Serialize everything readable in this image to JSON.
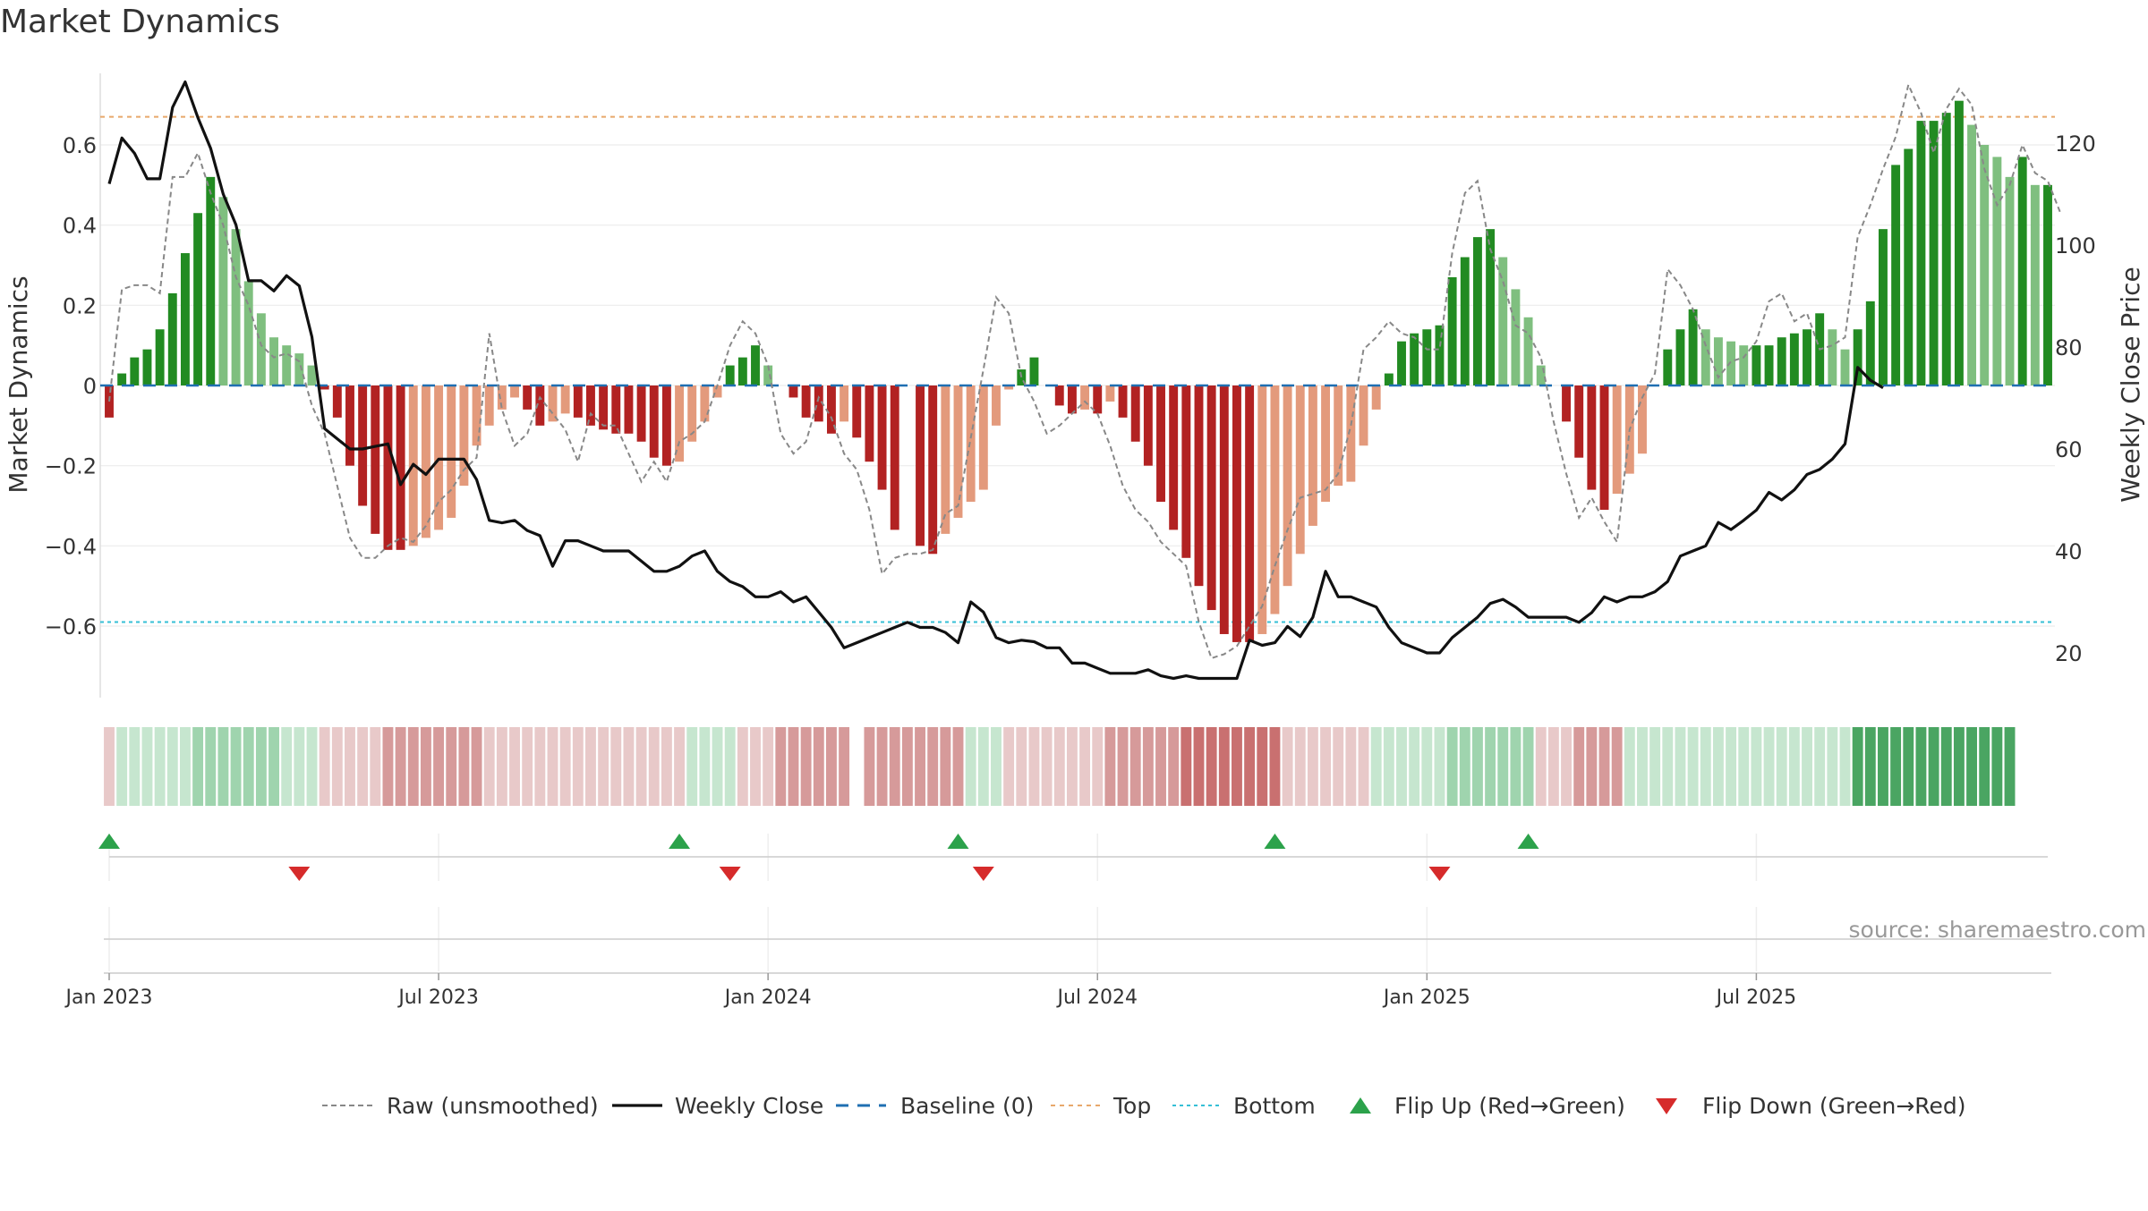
{
  "chart_data": {
    "type": "bar",
    "title": "Market Dynamics",
    "ylabel_left": "Market Dynamics",
    "ylabel_right": "Weekly Close Price",
    "ylim_left": [
      -0.77,
      0.78
    ],
    "ylim_right": [
      12,
      134
    ],
    "yticks_left": [
      {
        "value": 0.6,
        "label": "0.6"
      },
      {
        "value": 0.4,
        "label": "0.4"
      },
      {
        "value": 0.2,
        "label": "0.2"
      },
      {
        "value": 0.0,
        "label": "0"
      },
      {
        "value": -0.2,
        "label": "−0.2"
      },
      {
        "value": -0.4,
        "label": "−0.4"
      },
      {
        "value": -0.6,
        "label": "−0.6"
      }
    ],
    "yticks_right": [
      {
        "value": 120,
        "label": "120"
      },
      {
        "value": 100,
        "label": "100"
      },
      {
        "value": 80,
        "label": "80"
      },
      {
        "value": 60,
        "label": "60"
      },
      {
        "value": 40,
        "label": "40"
      },
      {
        "value": 20,
        "label": "20"
      }
    ],
    "xticks": [
      {
        "week": 1,
        "label": "Jan 2023"
      },
      {
        "week": 27,
        "label": "Jul 2023"
      },
      {
        "week": 53,
        "label": "Jan 2024"
      },
      {
        "week": 79,
        "label": "Jul 2024"
      },
      {
        "week": 105,
        "label": "Jan 2025"
      },
      {
        "week": 131,
        "label": "Jul 2025"
      }
    ],
    "top_level": 0.67,
    "bottom_level": -0.59,
    "baseline": 0,
    "momentum": [
      -0.08,
      0.03,
      0.07,
      0.09,
      0.14,
      0.23,
      0.33,
      0.43,
      0.52,
      0.47,
      0.39,
      0.26,
      0.18,
      0.12,
      0.1,
      0.08,
      0.05,
      -0.01,
      -0.08,
      -0.2,
      -0.3,
      -0.37,
      -0.41,
      -0.41,
      -0.4,
      -0.38,
      -0.36,
      -0.33,
      -0.25,
      -0.15,
      -0.1,
      -0.06,
      -0.03,
      -0.06,
      -0.1,
      -0.09,
      -0.07,
      -0.08,
      -0.1,
      -0.11,
      -0.12,
      -0.12,
      -0.14,
      -0.18,
      -0.2,
      -0.19,
      -0.14,
      -0.09,
      -0.03,
      0.05,
      0.07,
      0.1,
      0.05,
      0.0,
      -0.03,
      -0.08,
      -0.09,
      -0.12,
      -0.09,
      -0.13,
      -0.19,
      -0.26,
      -0.36,
      0.0,
      -0.4,
      -0.42,
      -0.37,
      -0.33,
      -0.29,
      -0.26,
      -0.1,
      -0.01,
      0.04,
      0.07,
      0.0,
      -0.05,
      -0.07,
      -0.06,
      -0.07,
      -0.04,
      -0.08,
      -0.14,
      -0.2,
      -0.29,
      -0.36,
      -0.43,
      -0.5,
      -0.56,
      -0.62,
      -0.64,
      -0.64,
      -0.62,
      -0.57,
      -0.5,
      -0.42,
      -0.35,
      -0.29,
      -0.25,
      -0.24,
      -0.15,
      -0.06,
      0.03,
      0.11,
      0.13,
      0.14,
      0.15,
      0.27,
      0.32,
      0.37,
      0.39,
      0.32,
      0.24,
      0.17,
      0.05,
      0.0,
      -0.09,
      -0.18,
      -0.26,
      -0.31,
      -0.27,
      -0.22,
      -0.17,
      0.0,
      0.09,
      0.14,
      0.19,
      0.14,
      0.12,
      0.11,
      0.1,
      0.1,
      0.1,
      0.12,
      0.13,
      0.14,
      0.18,
      0.14,
      0.09,
      0.14,
      0.21,
      0.39,
      0.55,
      0.59,
      0.66,
      0.66,
      0.68,
      0.71,
      0.65,
      0.6,
      0.57,
      0.52,
      0.57,
      0.5,
      0.5
    ],
    "raw_unsmoothed": [
      -0.04,
      0.24,
      0.25,
      0.25,
      0.23,
      0.52,
      0.52,
      0.58,
      0.48,
      0.4,
      0.27,
      0.2,
      0.1,
      0.07,
      0.08,
      0.06,
      -0.05,
      -0.12,
      -0.25,
      -0.38,
      -0.43,
      -0.43,
      -0.4,
      -0.38,
      -0.39,
      -0.35,
      -0.29,
      -0.26,
      -0.21,
      -0.18,
      0.13,
      -0.06,
      -0.15,
      -0.12,
      -0.03,
      -0.07,
      -0.11,
      -0.19,
      -0.07,
      -0.1,
      -0.1,
      -0.17,
      -0.24,
      -0.19,
      -0.24,
      -0.14,
      -0.12,
      -0.09,
      0.0,
      0.1,
      0.16,
      0.13,
      0.05,
      -0.12,
      -0.17,
      -0.14,
      -0.03,
      -0.08,
      -0.17,
      -0.21,
      -0.31,
      -0.47,
      -0.43,
      -0.42,
      -0.42,
      -0.41,
      -0.32,
      -0.3,
      -0.13,
      0.04,
      0.22,
      0.18,
      0.02,
      -0.04,
      -0.12,
      -0.1,
      -0.07,
      -0.04,
      -0.07,
      -0.15,
      -0.25,
      -0.31,
      -0.34,
      -0.39,
      -0.42,
      -0.45,
      -0.59,
      -0.68,
      -0.67,
      -0.65,
      -0.6,
      -0.55,
      -0.45,
      -0.36,
      -0.28,
      -0.27,
      -0.26,
      -0.22,
      -0.1,
      0.09,
      0.12,
      0.16,
      0.13,
      0.12,
      0.09,
      0.09,
      0.33,
      0.48,
      0.51,
      0.34,
      0.26,
      0.15,
      0.13,
      0.07,
      -0.09,
      -0.22,
      -0.33,
      -0.28,
      -0.34,
      -0.39,
      -0.11,
      -0.03,
      0.03,
      0.29,
      0.25,
      0.19,
      0.1,
      0.02,
      0.06,
      0.07,
      0.11,
      0.21,
      0.23,
      0.16,
      0.18,
      0.09,
      0.1,
      0.12,
      0.37,
      0.45,
      0.54,
      0.62,
      0.75,
      0.68,
      0.58,
      0.69,
      0.74,
      0.7,
      0.54,
      0.45,
      0.5,
      0.6,
      0.53,
      0.51,
      0.43
    ],
    "weekly_close": [
      112,
      121,
      118,
      113,
      113,
      127,
      132,
      125,
      119,
      110,
      104,
      93,
      93,
      91,
      94,
      92,
      82,
      64,
      62,
      60,
      60,
      60.5,
      61,
      53,
      57,
      55,
      58,
      58,
      58,
      54,
      46,
      45.5,
      46,
      44,
      43,
      37,
      42,
      42,
      41,
      40,
      40,
      40,
      38,
      36,
      36,
      37,
      39,
      40,
      36,
      34,
      33,
      31,
      31,
      32,
      30,
      31,
      28,
      25,
      21,
      22,
      23,
      24,
      25,
      26,
      25,
      25,
      24,
      22,
      30,
      28,
      23,
      22,
      22.5,
      22.2,
      21,
      21,
      18,
      18,
      17,
      16,
      16,
      16,
      16.7,
      15.5,
      15,
      15.5,
      15,
      15,
      15,
      15,
      22.5,
      21.5,
      22,
      25.2,
      23.2,
      27,
      36,
      31,
      31,
      30,
      29,
      25,
      22,
      21,
      20,
      20,
      23,
      25,
      27,
      29.7,
      30.5,
      29,
      27,
      27,
      27,
      27,
      26,
      27.9,
      31,
      30,
      31,
      31,
      32,
      34,
      39,
      40,
      41,
      45.6,
      44.2,
      46,
      48,
      51.5,
      50,
      52,
      55,
      56,
      58,
      61,
      76,
      73.5,
      72
    ],
    "bands": [
      {
        "c": "#e8c9c9",
        "n": 1
      },
      {
        "c": "#c6e6cf",
        "n": 6
      },
      {
        "c": "#9fd4ae",
        "n": 7
      },
      {
        "c": "#c6e6cf",
        "n": 3
      },
      {
        "c": "#e8c9c9",
        "n": 5
      },
      {
        "c": "#d69a9a",
        "n": 8
      },
      {
        "c": "#e8c9c9",
        "n": 16
      },
      {
        "c": "#c6e6cf",
        "n": 4
      },
      {
        "c": "#e8c9c9",
        "n": 3
      },
      {
        "c": "#d69a9a",
        "n": 6
      },
      {
        "c": "#ffffff",
        "n": 1
      },
      {
        "c": "#d69a9a",
        "n": 8
      },
      {
        "c": "#c6e6cf",
        "n": 3
      },
      {
        "c": "#e8c9c9",
        "n": 8
      },
      {
        "c": "#d69a9a",
        "n": 6
      },
      {
        "c": "#c97070",
        "n": 8
      },
      {
        "c": "#e8c9c9",
        "n": 7
      },
      {
        "c": "#c6e6cf",
        "n": 6
      },
      {
        "c": "#9fd4ae",
        "n": 7
      },
      {
        "c": "#e8c9c9",
        "n": 3
      },
      {
        "c": "#d69a9a",
        "n": 4
      },
      {
        "c": "#c6e6cf",
        "n": 18
      },
      {
        "c": "#4aa562",
        "n": 13
      }
    ],
    "flip_up_weeks": [
      1,
      46,
      68,
      93,
      113
    ],
    "flip_down_weeks": [
      16,
      50,
      70,
      106
    ],
    "annotation": "source: sharemaestro.com",
    "legend": [
      {
        "label": "Raw (unsmoothed)",
        "style": "dashed-gray"
      },
      {
        "label": "Weekly Close",
        "style": "solid-black"
      },
      {
        "label": "Baseline (0)",
        "style": "dashed-blue"
      },
      {
        "label": "Top",
        "style": "dotted-orange"
      },
      {
        "label": "Bottom",
        "style": "dotted-cyan"
      },
      {
        "label": "Flip Up (Red→Green)",
        "style": "triangle-up"
      },
      {
        "label": "Flip Down (Green→Red)",
        "style": "triangle-down"
      }
    ],
    "colors": {
      "pos_strong": "#228b22",
      "pos_fading": "#7fbf7f",
      "neg_strong": "#b22222",
      "neg_fading": "#e39a7c",
      "raw": "#888888",
      "close": "#111111",
      "baseline": "#1f6fb2",
      "top": "#e8a86b",
      "bottom": "#35bfd6",
      "flip_up": "#2ca24b",
      "flip_down": "#d62b2b"
    }
  }
}
